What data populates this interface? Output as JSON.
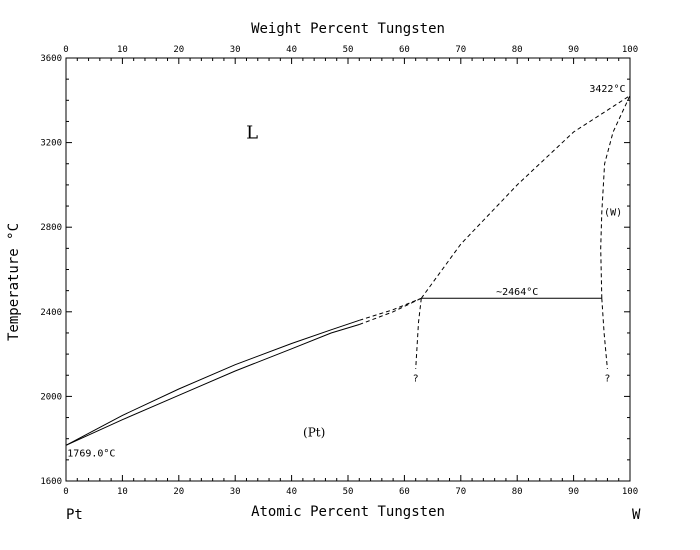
{
  "chart_data": {
    "type": "line",
    "title": "",
    "top_axis_label": "Weight Percent Tungsten",
    "xlabel": "Atomic Percent Tungsten",
    "ylabel": "Temperature °C",
    "xlim": [
      0,
      100
    ],
    "ylim": [
      1600,
      3600
    ],
    "top_ticks": [
      0,
      10,
      20,
      30,
      40,
      50,
      60,
      70,
      80,
      90,
      100
    ],
    "bottom_ticks": [
      0,
      10,
      20,
      30,
      40,
      50,
      60,
      70,
      80,
      90,
      100
    ],
    "y_ticks": [
      1600,
      2000,
      2400,
      2800,
      3200,
      3600
    ],
    "left_element": "Pt",
    "right_element": "W",
    "grid": false,
    "series": [
      {
        "style": "solid",
        "points": [
          [
            0,
            1769
          ],
          [
            10,
            1890
          ],
          [
            20,
            2005
          ],
          [
            30,
            2120
          ],
          [
            40,
            2225
          ],
          [
            47,
            2300
          ],
          [
            52,
            2340
          ]
        ]
      },
      {
        "style": "solid",
        "points": [
          [
            0,
            1769
          ],
          [
            10,
            1910
          ],
          [
            20,
            2035
          ],
          [
            30,
            2150
          ],
          [
            40,
            2250
          ],
          [
            47,
            2315
          ],
          [
            52,
            2360
          ]
        ]
      },
      {
        "style": "dashed",
        "points": [
          [
            52,
            2340
          ],
          [
            58,
            2400
          ],
          [
            63,
            2464
          ]
        ]
      },
      {
        "style": "dashed",
        "points": [
          [
            52,
            2360
          ],
          [
            58,
            2410
          ],
          [
            63,
            2464
          ]
        ]
      },
      {
        "style": "dashed",
        "points": [
          [
            63,
            2464
          ],
          [
            70,
            2720
          ],
          [
            80,
            3000
          ],
          [
            90,
            3250
          ],
          [
            100,
            3422
          ]
        ]
      },
      {
        "style": "dashed",
        "points": [
          [
            63,
            2464
          ],
          [
            62.5,
            2350
          ],
          [
            62,
            2130
          ]
        ]
      },
      {
        "style": "dashed",
        "points": [
          [
            95,
            2464
          ],
          [
            94.8,
            2700
          ],
          [
            95,
            2870
          ],
          [
            95.5,
            3100
          ],
          [
            97,
            3250
          ],
          [
            100,
            3422
          ]
        ]
      },
      {
        "style": "dashed",
        "points": [
          [
            95,
            2464
          ],
          [
            95.4,
            2300
          ],
          [
            96,
            2130
          ]
        ]
      },
      {
        "style": "solid",
        "points": [
          [
            63,
            2464
          ],
          [
            95,
            2464
          ]
        ]
      }
    ],
    "annotations": [
      {
        "text": "L",
        "x": 33,
        "y": 3220,
        "class": "big"
      },
      {
        "text": "(Pt)",
        "x": 44,
        "y": 1810,
        "class": "mid"
      },
      {
        "text": "(W)",
        "x": 97,
        "y": 2855,
        "class": "anno"
      },
      {
        "text": "~2464°C",
        "x": 80,
        "y": 2480,
        "class": "anno"
      },
      {
        "text": "3422°C",
        "x": 96,
        "y": 3440,
        "class": "anno"
      },
      {
        "text": "1769.0°C",
        "x": 4.5,
        "y": 1715,
        "class": "anno"
      },
      {
        "text": "?",
        "x": 62,
        "y": 2070,
        "class": "anno"
      },
      {
        "text": "?",
        "x": 96,
        "y": 2070,
        "class": "anno"
      }
    ]
  }
}
